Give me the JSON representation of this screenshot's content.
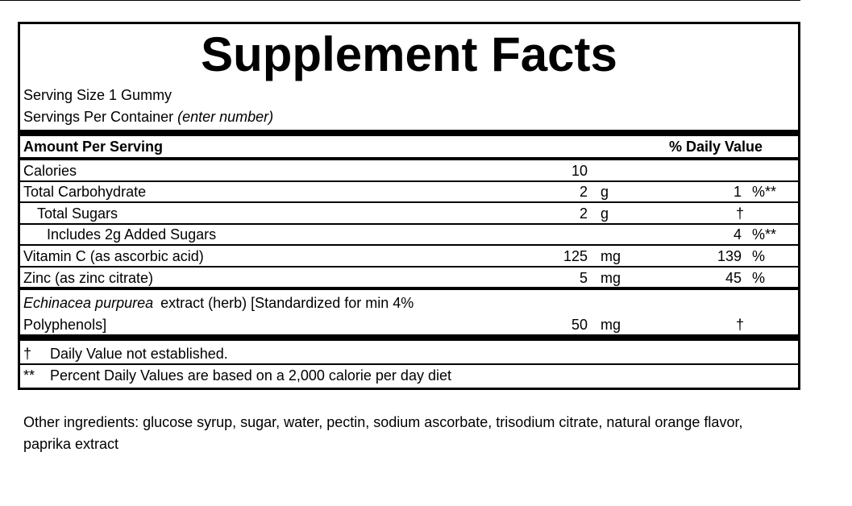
{
  "title": "Supplement Facts",
  "serving_size": "Serving Size 1 Gummy",
  "servings_per_container": {
    "label": "Servings Per Container",
    "value": "(enter number)"
  },
  "header": {
    "amount": "Amount Per Serving",
    "daily_value": "% Daily Value"
  },
  "rows": [
    {
      "name": "Calories",
      "amount": "10"
    },
    {
      "name": "Total Carbohydrate",
      "amount": "2",
      "unit": "g",
      "dv": "1",
      "dv_unit": "%**"
    },
    {
      "name": "Total Sugars",
      "amount": "2",
      "unit": "g",
      "dv": "†"
    },
    {
      "name": "Includes 2g Added Sugars",
      "dv": "4",
      "dv_unit": "%**"
    },
    {
      "name": "Vitamin C (as ascorbic acid)",
      "amount": "125",
      "unit": "mg",
      "dv": "139",
      "dv_unit": "%"
    },
    {
      "name": "Zinc (as zinc citrate)",
      "amount": "5",
      "unit": "mg",
      "dv": "45",
      "dv_unit": "%"
    }
  ],
  "herb": {
    "name_italic": "Echinacea purpurea",
    "name_rest": "extract (herb) [Standardized for min 4%",
    "name_line2": "Polyphenols]",
    "amount": "50",
    "unit": "mg",
    "dv": "†"
  },
  "footnotes": [
    {
      "symbol": "†",
      "text": "Daily Value not established."
    },
    {
      "symbol": "**",
      "text": "Percent Daily Values are based on a 2,000 calorie per day diet"
    }
  ],
  "other_ingredients": "Other ingredients: glucose syrup, sugar, water, pectin, sodium ascorbate, trisodium citrate, natural orange flavor, paprika extract"
}
